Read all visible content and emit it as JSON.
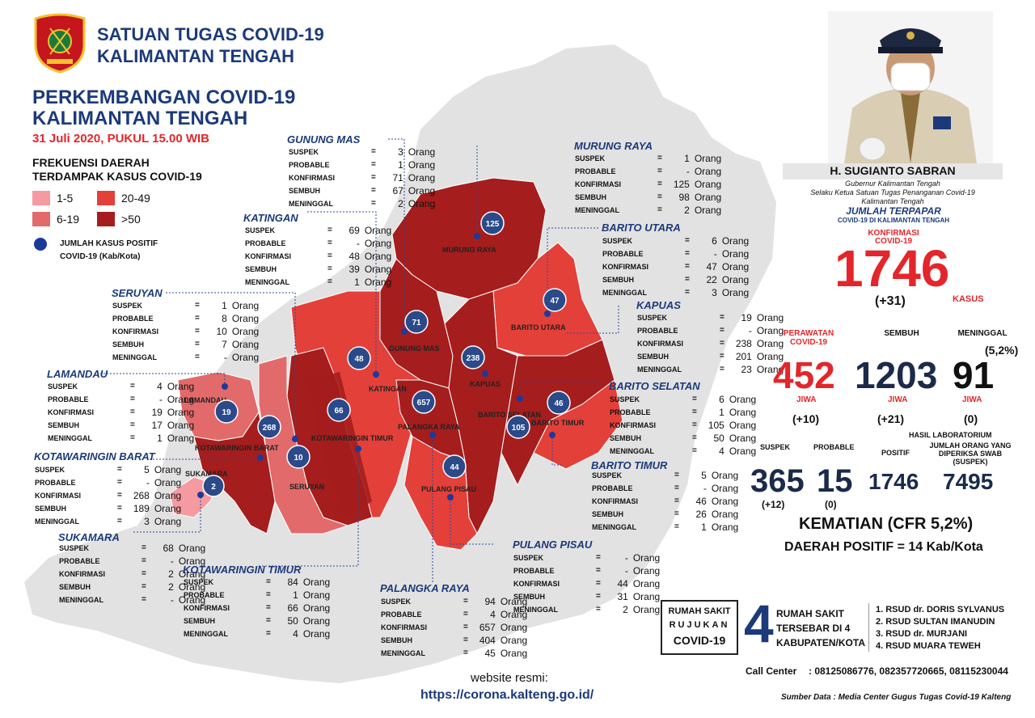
{
  "header": {
    "org_line1": "SATUAN TUGAS COVID-19",
    "org_line2": "KALIMANTAN TENGAH",
    "title_line1": "PERKEMBANGAN COVID-19",
    "title_line2": "KALIMANTAN TENGAH",
    "date": "31 Juli 2020, PUKUL 15.00 WIB"
  },
  "legend": {
    "title_line1": "FREKUENSI DAERAH",
    "title_line2": "TERDAMPAK KASUS COVID-19",
    "items": [
      {
        "label": "1-5",
        "color": "#f59aa0"
      },
      {
        "label": "20-49",
        "color": "#e3403a"
      },
      {
        "label": "6-19",
        "color": "#e36a6a"
      },
      {
        "label": ">50",
        "color": "#a51d1d"
      }
    ],
    "dot_line1": "JUMLAH KASUS POSITIF",
    "dot_line2": "COVID-19 (Kab/Kota)"
  },
  "stat_labels": {
    "suspek": "SUSPEK",
    "probable": "PROBABLE",
    "konfirmasi": "KONFIRMASI",
    "sembuh": "SEMBUH",
    "meninggal": "MENINGGAL",
    "eq": "=",
    "unit": "Orang"
  },
  "regions": [
    {
      "key": "gunung_mas",
      "name": "GUNUNG MAS",
      "suspek": "3",
      "probable": "1",
      "konfirmasi": "71",
      "sembuh": "67",
      "meninggal": "2",
      "bubble": "71",
      "map_label": "GUNUNG MAS"
    },
    {
      "key": "murung_raya",
      "name": "MURUNG RAYA",
      "suspek": "1",
      "probable": "-",
      "konfirmasi": "125",
      "sembuh": "98",
      "meninggal": "2",
      "bubble": "125",
      "map_label": "MURUNG RAYA"
    },
    {
      "key": "katingan",
      "name": "KATINGAN",
      "suspek": "69",
      "probable": "-",
      "konfirmasi": "48",
      "sembuh": "39",
      "meninggal": "1",
      "bubble": "48",
      "map_label": "KATINGAN"
    },
    {
      "key": "barito_utara",
      "name": "BARITO UTARA",
      "suspek": "6",
      "probable": "-",
      "konfirmasi": "47",
      "sembuh": "22",
      "meninggal": "3",
      "bubble": "47",
      "map_label": "BARITO UTARA"
    },
    {
      "key": "seruyan",
      "name": "SERUYAN",
      "suspek": "1",
      "probable": "8",
      "konfirmasi": "10",
      "sembuh": "7",
      "meninggal": "-",
      "bubble": "10",
      "map_label": "SERUYAN"
    },
    {
      "key": "kapuas",
      "name": "KAPUAS",
      "suspek": "19",
      "probable": "-",
      "konfirmasi": "238",
      "sembuh": "201",
      "meninggal": "23",
      "bubble": "238",
      "map_label": "KAPUAS"
    },
    {
      "key": "lamandau",
      "name": "LAMANDAU",
      "suspek": "4",
      "probable": "-",
      "konfirmasi": "19",
      "sembuh": "17",
      "meninggal": "1",
      "bubble": "19",
      "map_label": "LAMANDAU"
    },
    {
      "key": "barito_selatan",
      "name": "BARITO SELATAN",
      "suspek": "6",
      "probable": "1",
      "konfirmasi": "105",
      "sembuh": "50",
      "meninggal": "4",
      "bubble": "105",
      "map_label": "BARITO SELATAN"
    },
    {
      "key": "kotawaringin_barat",
      "name": "KOTAWARINGIN BARAT",
      "suspek": "5",
      "probable": "-",
      "konfirmasi": "268",
      "sembuh": "189",
      "meninggal": "3",
      "bubble": "268",
      "map_label": "KOTAWARINGIN BARAT"
    },
    {
      "key": "barito_timur",
      "name": "BARITO TIMUR",
      "suspek": "5",
      "probable": "-",
      "konfirmasi": "46",
      "sembuh": "26",
      "meninggal": "1",
      "bubble": "46",
      "map_label": "BARITO TIMUR"
    },
    {
      "key": "sukamara",
      "name": "SUKAMARA",
      "suspek": "68",
      "probable": "-",
      "konfirmasi": "2",
      "sembuh": "2",
      "meninggal": "-",
      "bubble": "2",
      "map_label": "SUKAMARA"
    },
    {
      "key": "pulang_pisau",
      "name": "PULANG PISAU",
      "suspek": "-",
      "probable": "-",
      "konfirmasi": "44",
      "sembuh": "31",
      "meninggal": "2",
      "bubble": "44",
      "map_label": "PULANG PISAU"
    },
    {
      "key": "kotawaringin_timur",
      "name": "KOTAWARINGIN TIMUR",
      "suspek": "84",
      "probable": "1",
      "konfirmasi": "66",
      "sembuh": "50",
      "meninggal": "4",
      "bubble": "66",
      "map_label": "KOTAWARINGIN TIMUR"
    },
    {
      "key": "palangka_raya",
      "name": "PALANGKA RAYA",
      "suspek": "94",
      "probable": "4",
      "konfirmasi": "657",
      "sembuh": "404",
      "meninggal": "45",
      "bubble": "657",
      "map_label": "PALANGKA RAYA"
    }
  ],
  "governor": {
    "name": "H. SUGIANTO SABRAN",
    "title1": "Gubernur Kalimantan Tengah",
    "title2": "Selaku Ketua Satuan Tugas Penanganan Covid-19",
    "title3": "Kalimantan Tengah"
  },
  "summary": {
    "heading": "JUMLAH TERPAPAR",
    "subheading": "COVID-19 DI KALIMANTAN TENGAH",
    "konfirmasi_label_1": "KONFIRMASI",
    "konfirmasi_label_2": "COVID-19",
    "konfirmasi": "1746",
    "konfirmasi_delta": "(+31)",
    "kasus_label": "KASUS",
    "perawatan_label_1": "PERAWATAN",
    "perawatan_label_2": "COVID-19",
    "sembuh_label": "SEMBUH",
    "meninggal_label": "MENINGGAL",
    "cfr_small": "(5,2%)",
    "perawatan": "452",
    "sembuh": "1203",
    "meninggal": "91",
    "jiwa": "JIWA",
    "perawatan_delta": "(+10)",
    "sembuh_delta": "(+21)",
    "meninggal_delta": "(0)",
    "hasil_lab": "HASIL LABORATORIUM",
    "suspek_label": "SUSPEK",
    "probable_label": "PROBABLE",
    "positif_label": "POSITIF",
    "swab_label_1": "JUMLAH ORANG YANG",
    "swab_label_2": "DIPERIKSA SWAB (SUSPEK)",
    "suspek": "365",
    "probable": "15",
    "positif": "1746",
    "swab": "7495",
    "suspek_delta": "(+12)",
    "probable_delta": "(0)",
    "kematian": "KEMATIAN (CFR 5,2%)",
    "daerah_positif": "DAERAH POSITIF = 14  Kab/Kota"
  },
  "hospital": {
    "label1": "RUMAH SAKIT",
    "label2": "RUJUKAN",
    "label3": "COVID-19",
    "count": "4",
    "desc1": "RUMAH SAKIT",
    "desc2": "TERSEBAR DI 4",
    "desc3": "KABUPATEN/KOTA",
    "list": [
      "1. RSUD dr. DORIS SYLVANUS",
      "2. RSUD SULTAN IMANUDIN",
      "3. RSUD dr. MURJANI",
      "4. RSUD MUARA TEWEH"
    ]
  },
  "footer": {
    "call_center_label": "Call Center",
    "call_center": ": 08125086776, 082357720665, 08115230044",
    "website_label": "website resmi:",
    "website": "https://corona.kalteng.go.id/",
    "source": "Sumber Data : Media Center Gugus Tugas Covid-19 Kalteng"
  }
}
